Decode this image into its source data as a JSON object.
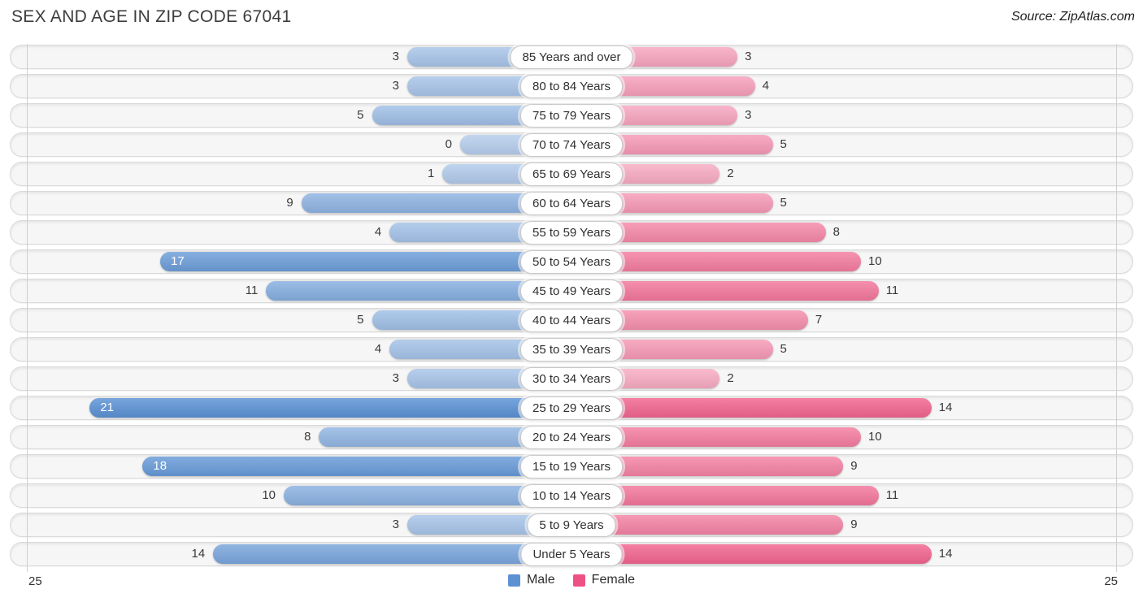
{
  "header": {
    "title": "SEX AND AGE IN ZIP CODE 67041",
    "source": "Source: ZipAtlas.com"
  },
  "axis": {
    "left_max": "25",
    "right_max": "25"
  },
  "legend": {
    "male_label": "Male",
    "female_label": "Female"
  },
  "colors": {
    "male_legend": "#5c92d1",
    "female_legend": "#ee5183",
    "male_min": "#b5cdec",
    "male_max": "#4986d0",
    "female_min": "#f9b7cc",
    "female_max": "#ec235f",
    "row_bg": "#f6f6f6",
    "row_border": "#dadada"
  },
  "chart_data": {
    "type": "bar",
    "orientation": "horizontal-pyramid",
    "title": "SEX AND AGE IN ZIP CODE 67041",
    "categories": [
      "85 Years and over",
      "80 to 84 Years",
      "75 to 79 Years",
      "70 to 74 Years",
      "65 to 69 Years",
      "60 to 64 Years",
      "55 to 59 Years",
      "50 to 54 Years",
      "45 to 49 Years",
      "40 to 44 Years",
      "35 to 39 Years",
      "30 to 34 Years",
      "25 to 29 Years",
      "20 to 24 Years",
      "15 to 19 Years",
      "10 to 14 Years",
      "5 to 9 Years",
      "Under 5 Years"
    ],
    "series": [
      {
        "name": "Male",
        "side": "left",
        "values": [
          3,
          3,
          5,
          0,
          1,
          9,
          4,
          17,
          11,
          5,
          4,
          3,
          21,
          8,
          18,
          10,
          3,
          14
        ]
      },
      {
        "name": "Female",
        "side": "right",
        "values": [
          3,
          4,
          3,
          5,
          2,
          5,
          8,
          10,
          11,
          7,
          5,
          2,
          14,
          10,
          9,
          11,
          9,
          14
        ]
      }
    ],
    "xlim": [
      0,
      25
    ],
    "grid": "edge-lines-only",
    "legend_position": "bottom-center",
    "value_labels": "at-bar-ends"
  }
}
